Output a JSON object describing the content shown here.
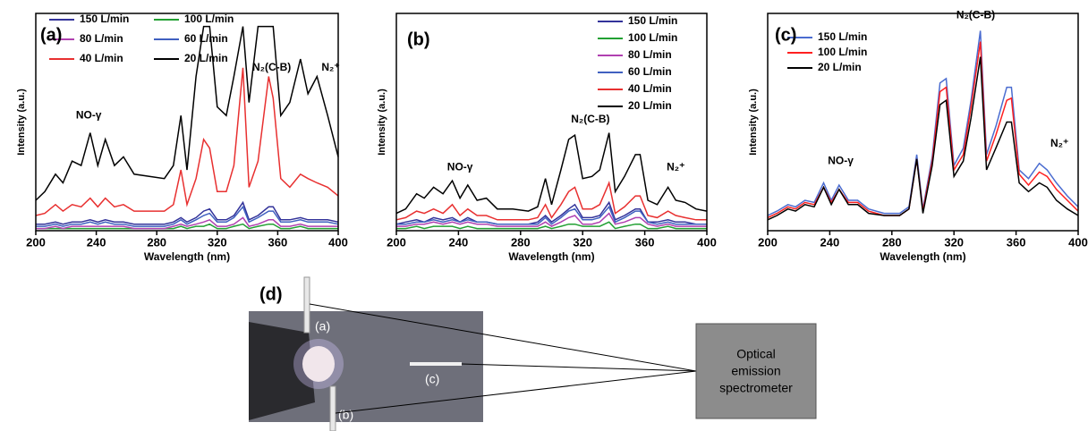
{
  "chart_data": [
    {
      "type": "line",
      "label": "(a)",
      "x_label": "Wavelength (nm)",
      "y_label": "Intensity (a.u.)",
      "xlim": [
        200,
        400
      ],
      "xticks": [
        200,
        240,
        280,
        320,
        360,
        400
      ],
      "ylim": [
        0,
        100
      ],
      "annotations": [
        "NO-γ",
        "N₂(C-B)",
        "N₂⁺"
      ],
      "x": [
        200,
        206,
        213,
        218,
        224,
        230,
        236,
        241,
        246,
        252,
        258,
        265,
        275,
        285,
        291,
        296,
        300,
        306,
        311,
        315,
        320,
        326,
        331,
        337,
        341,
        347,
        354,
        357,
        362,
        368,
        375,
        380,
        386,
        393,
        400
      ],
      "series": [
        {
          "name": "150 L/min",
          "color": "#33339a",
          "values": [
            3,
            3,
            4,
            3,
            4,
            4,
            5,
            4,
            5,
            4,
            4,
            3,
            3,
            3,
            4,
            6,
            4,
            6,
            9,
            10,
            5,
            5,
            7,
            13,
            5,
            7,
            11,
            11,
            5,
            5,
            6,
            5,
            5,
            5,
            4
          ]
        },
        {
          "name": "100 L/min",
          "color": "#22a033",
          "values": [
            1,
            1,
            1,
            1,
            1,
            1,
            1,
            1,
            1,
            1,
            1,
            1,
            1,
            1,
            1,
            2,
            1,
            2,
            2,
            3,
            1,
            1,
            2,
            3,
            1,
            2,
            3,
            3,
            1,
            1,
            2,
            1,
            1,
            1,
            1
          ]
        },
        {
          "name": "80 L/min",
          "color": "#b040b0",
          "values": [
            1,
            1,
            2,
            1,
            2,
            2,
            2,
            2,
            2,
            2,
            2,
            1,
            1,
            1,
            2,
            3,
            2,
            3,
            4,
            5,
            2,
            2,
            3,
            6,
            2,
            3,
            5,
            5,
            2,
            2,
            3,
            2,
            2,
            2,
            2
          ]
        },
        {
          "name": "60 L/min",
          "color": "#4060c0",
          "values": [
            2,
            2,
            3,
            2,
            3,
            3,
            4,
            3,
            4,
            3,
            3,
            2,
            2,
            2,
            3,
            5,
            3,
            5,
            7,
            8,
            4,
            4,
            6,
            11,
            4,
            6,
            9,
            9,
            4,
            4,
            5,
            4,
            4,
            4,
            3
          ]
        },
        {
          "name": "40 L/min",
          "color": "#e83030",
          "values": [
            7,
            8,
            12,
            9,
            12,
            11,
            15,
            11,
            15,
            11,
            12,
            9,
            9,
            9,
            12,
            28,
            12,
            24,
            42,
            38,
            18,
            18,
            30,
            75,
            20,
            32,
            71,
            61,
            24,
            20,
            26,
            24,
            22,
            20,
            16
          ]
        },
        {
          "name": "20 L/min",
          "color": "#000000",
          "values": [
            14,
            18,
            26,
            22,
            32,
            30,
            45,
            30,
            42,
            30,
            34,
            26,
            25,
            24,
            30,
            53,
            28,
            71,
            94,
            94,
            57,
            53,
            71,
            94,
            59,
            94,
            94,
            94,
            53,
            59,
            79,
            63,
            71,
            53,
            34
          ]
        }
      ]
    },
    {
      "type": "line",
      "label": "(b)",
      "x_label": "Wavelength (nm)",
      "y_label": "Intensity (a.u.)",
      "xlim": [
        200,
        400
      ],
      "xticks": [
        200,
        240,
        280,
        320,
        360,
        400
      ],
      "ylim": [
        0,
        100
      ],
      "annotations": [
        "NO-γ",
        "N₂(C-B)",
        "N₂⁺"
      ],
      "x": [
        200,
        206,
        213,
        218,
        224,
        230,
        236,
        241,
        246,
        252,
        258,
        265,
        275,
        285,
        291,
        296,
        300,
        306,
        311,
        315,
        320,
        326,
        331,
        337,
        341,
        347,
        354,
        357,
        362,
        368,
        375,
        380,
        386,
        393,
        400
      ],
      "series": [
        {
          "name": "150 L/min",
          "color": "#33339a",
          "values": [
            3,
            4,
            5,
            4,
            6,
            5,
            6,
            4,
            6,
            4,
            4,
            3,
            3,
            3,
            4,
            7,
            4,
            7,
            10,
            12,
            6,
            6,
            7,
            13,
            5,
            7,
            10,
            10,
            4,
            4,
            5,
            4,
            4,
            3,
            3
          ]
        },
        {
          "name": "100 L/min",
          "color": "#22a033",
          "values": [
            1,
            1,
            2,
            1,
            2,
            2,
            2,
            1,
            2,
            1,
            1,
            1,
            1,
            1,
            1,
            2,
            1,
            2,
            3,
            3,
            2,
            2,
            2,
            4,
            1,
            2,
            3,
            3,
            1,
            1,
            2,
            1,
            1,
            1,
            1
          ]
        },
        {
          "name": "80 L/min",
          "color": "#b040b0",
          "values": [
            2,
            2,
            3,
            3,
            4,
            3,
            4,
            3,
            4,
            3,
            3,
            2,
            2,
            2,
            2,
            4,
            2,
            4,
            6,
            7,
            3,
            3,
            4,
            8,
            3,
            4,
            6,
            6,
            3,
            2,
            3,
            2,
            2,
            2,
            2
          ]
        },
        {
          "name": "60 L/min",
          "color": "#4060c0",
          "values": [
            3,
            3,
            4,
            4,
            5,
            4,
            5,
            4,
            5,
            4,
            4,
            3,
            3,
            3,
            3,
            6,
            3,
            6,
            9,
            10,
            5,
            5,
            6,
            11,
            4,
            6,
            9,
            9,
            4,
            3,
            4,
            3,
            3,
            3,
            3
          ]
        },
        {
          "name": "40 L/min",
          "color": "#e83030",
          "values": [
            5,
            6,
            9,
            8,
            10,
            8,
            12,
            7,
            10,
            7,
            7,
            5,
            5,
            5,
            6,
            12,
            6,
            12,
            18,
            20,
            10,
            10,
            12,
            22,
            8,
            11,
            16,
            16,
            7,
            6,
            9,
            7,
            6,
            5,
            5
          ]
        },
        {
          "name": "20 L/min",
          "color": "#000000",
          "values": [
            8,
            10,
            17,
            15,
            20,
            17,
            23,
            15,
            21,
            14,
            15,
            10,
            10,
            9,
            11,
            24,
            12,
            28,
            42,
            44,
            24,
            25,
            28,
            45,
            18,
            25,
            35,
            35,
            14,
            12,
            20,
            14,
            13,
            10,
            9
          ]
        }
      ]
    },
    {
      "type": "line",
      "label": "(c)",
      "x_label": "Wavelength (nm)",
      "y_label": "Intensity (a.u.)",
      "xlim": [
        200,
        400
      ],
      "xticks": [
        200,
        240,
        280,
        320,
        360,
        400
      ],
      "ylim": [
        0,
        100
      ],
      "annotations": [
        "NO-γ",
        "N₂(C-B)",
        "N₂⁺"
      ],
      "x": [
        200,
        206,
        213,
        218,
        224,
        230,
        236,
        241,
        246,
        252,
        258,
        265,
        275,
        285,
        291,
        296,
        300,
        306,
        311,
        315,
        320,
        326,
        331,
        337,
        341,
        347,
        354,
        357,
        362,
        368,
        375,
        380,
        386,
        393,
        400
      ],
      "series": [
        {
          "name": "150 L/min",
          "color": "#4a6cd0",
          "values": [
            7,
            9,
            12,
            11,
            14,
            13,
            22,
            14,
            21,
            14,
            14,
            10,
            8,
            8,
            11,
            35,
            10,
            34,
            68,
            70,
            30,
            38,
            60,
            92,
            35,
            48,
            66,
            66,
            28,
            24,
            31,
            28,
            22,
            16,
            11
          ]
        },
        {
          "name": "100 L/min",
          "color": "#ff2020",
          "values": [
            6,
            8,
            11,
            10,
            13,
            12,
            20,
            13,
            19,
            13,
            13,
            9,
            7,
            7,
            10,
            33,
            9,
            32,
            64,
            66,
            28,
            35,
            57,
            87,
            32,
            44,
            60,
            61,
            26,
            21,
            27,
            25,
            19,
            14,
            9
          ]
        },
        {
          "name": "20 L/min",
          "color": "#000000",
          "values": [
            5,
            7,
            10,
            9,
            12,
            11,
            20,
            12,
            19,
            12,
            12,
            8,
            7,
            7,
            10,
            33,
            8,
            30,
            58,
            60,
            25,
            32,
            52,
            80,
            28,
            38,
            50,
            50,
            22,
            18,
            22,
            20,
            14,
            10,
            7
          ]
        }
      ]
    }
  ],
  "diagram": {
    "label": "(d)",
    "probes": [
      "(a)",
      "(b)",
      "(c)"
    ],
    "box": [
      "Optical",
      "emission",
      "spectrometer"
    ]
  }
}
